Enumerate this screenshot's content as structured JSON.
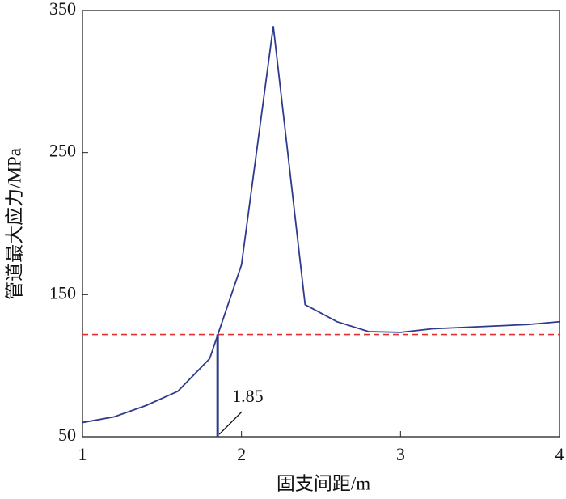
{
  "chart_data": {
    "type": "line",
    "xlabel": "固支间距/m",
    "ylabel": "管道最大应力/MPa",
    "x": [
      1.0,
      1.2,
      1.4,
      1.6,
      1.8,
      2.0,
      2.2,
      2.4,
      2.6,
      2.8,
      3.0,
      3.2,
      3.4,
      3.6,
      3.8,
      4.0
    ],
    "series": [
      {
        "color": "#2e3a8c",
        "values": [
          60,
          64,
          72,
          82,
          105,
          171,
          339,
          143,
          131,
          124,
          123.5,
          126,
          127,
          128,
          129,
          131
        ]
      }
    ],
    "xlim": [
      1,
      4
    ],
    "xticks": [
      1,
      2,
      3,
      4
    ],
    "ylim": [
      50,
      350
    ],
    "yticks": [
      50,
      150,
      250,
      350
    ],
    "reference_line": {
      "y": 122,
      "color": "#e03030"
    },
    "marker": {
      "x": 1.85,
      "color": "#2e3a8c"
    }
  }
}
